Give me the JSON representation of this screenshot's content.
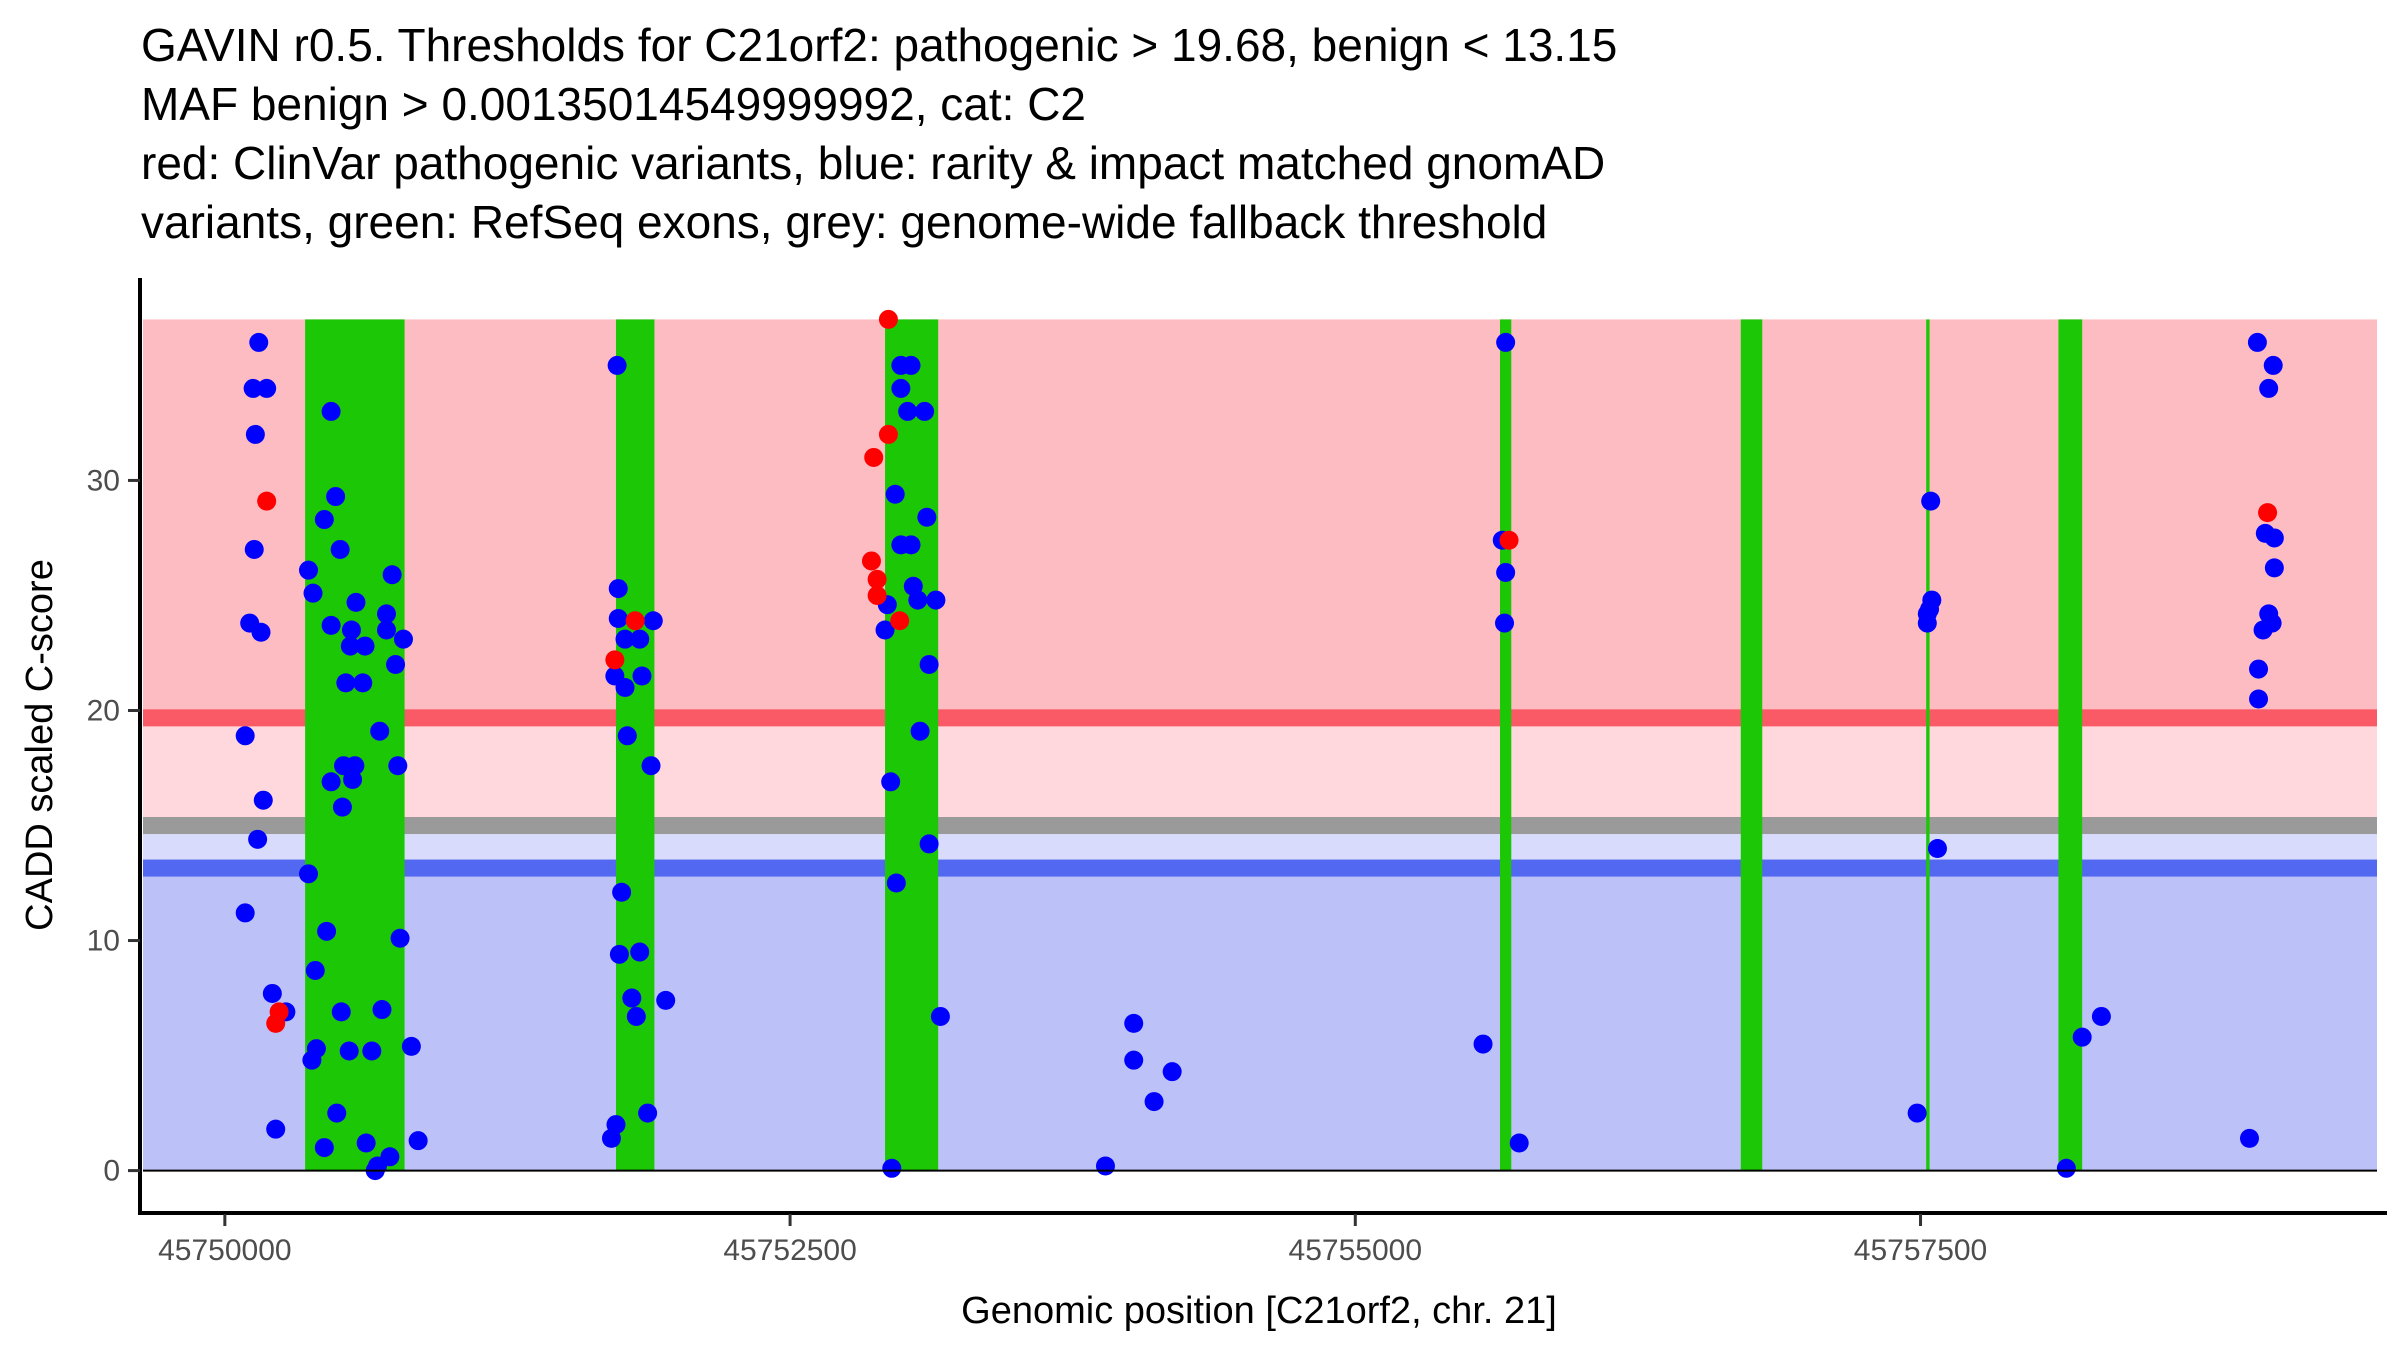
{
  "title": {
    "lines": [
      "GAVIN r0.5. Thresholds for C21orf2: pathogenic > 19.68, benign < 13.15",
      "MAF benign > 0.00135014549999992, cat: C2",
      "red: ClinVar pathogenic variants, blue: rarity & impact matched gnomAD",
      "variants, green: RefSeq exons, grey: genome-wide fallback threshold"
    ]
  },
  "colors": {
    "pathogenic_zone": "#FDBCC2",
    "pathogenic_line": "#FA5966",
    "pathogenic_margin": "#FED8DD",
    "fallback_line": "#9A9A9A",
    "benign_margin": "#D8DBFB",
    "benign_line": "#5368F0",
    "benign_zone": "#BCC2F8",
    "exon": "#1CC805",
    "pathogenic_point": "#FF0000",
    "population_point": "#0000FF",
    "axis": "#000000",
    "tick_text": "#4D4D4D"
  },
  "chart_data": {
    "type": "scatter",
    "title": "GAVIN r0.5. Thresholds for C21orf2: pathogenic > 19.68, benign < 13.15 / MAF benign > 0.00135014549999992, cat: C2",
    "xlabel": "Genomic position [C21orf2, chr. 21]",
    "ylabel": "CADD scaled C-score",
    "xlim": [
      45749638,
      45759519
    ],
    "ylim": [
      -1.8,
      38.8
    ],
    "xticks": [
      45750000,
      45752500,
      45755000,
      45757500
    ],
    "xtick_labels": [
      "45750000",
      "45752500",
      "45755000",
      "45757500"
    ],
    "yticks": [
      0,
      10,
      20,
      30
    ],
    "ytick_labels": [
      "0",
      "10",
      "20",
      "30"
    ],
    "grid": false,
    "legend": "none",
    "thresholds": {
      "pathogenic": 19.68,
      "benign": 13.15,
      "fallback": 15.0,
      "zone_top": 37.0,
      "zone_bottom": 0
    },
    "exons": [
      {
        "start": 45750355,
        "end": 45750795
      },
      {
        "start": 45751730,
        "end": 45751900
      },
      {
        "start": 45752920,
        "end": 45753155
      },
      {
        "start": 45755640,
        "end": 45755690
      },
      {
        "start": 45756705,
        "end": 45756800
      },
      {
        "start": 45757525,
        "end": 45757540
      },
      {
        "start": 45758110,
        "end": 45758215
      }
    ],
    "series": [
      {
        "name": "ClinVar pathogenic variants",
        "color": "red",
        "points": [
          [
            45750185,
            29.1
          ],
          [
            45750240,
            6.9
          ],
          [
            45750225,
            6.4
          ],
          [
            45751815,
            23.9
          ],
          [
            45751725,
            22.2
          ],
          [
            45752935,
            37.0
          ],
          [
            45752935,
            32.0
          ],
          [
            45752870,
            31.0
          ],
          [
            45752860,
            26.5
          ],
          [
            45752885,
            25.7
          ],
          [
            45752885,
            25.0
          ],
          [
            45752985,
            23.9
          ],
          [
            45755680,
            27.4
          ],
          [
            45759035,
            28.6
          ]
        ]
      },
      {
        "name": "rarity & impact matched gnomAD variants",
        "color": "blue",
        "points": [
          [
            45750150,
            36.0
          ],
          [
            45750125,
            34.0
          ],
          [
            45750185,
            34.0
          ],
          [
            45750135,
            32.0
          ],
          [
            45750130,
            27.0
          ],
          [
            45750110,
            23.8
          ],
          [
            45750160,
            23.4
          ],
          [
            45750090,
            18.9
          ],
          [
            45750170,
            16.1
          ],
          [
            45750145,
            14.4
          ],
          [
            45750090,
            11.2
          ],
          [
            45750210,
            7.7
          ],
          [
            45750270,
            6.9
          ],
          [
            45750225,
            1.8
          ],
          [
            45750470,
            33.0
          ],
          [
            45750490,
            29.3
          ],
          [
            45750440,
            28.3
          ],
          [
            45750510,
            27.0
          ],
          [
            45750370,
            26.1
          ],
          [
            45750740,
            25.9
          ],
          [
            45750390,
            25.1
          ],
          [
            45750580,
            24.7
          ],
          [
            45750715,
            24.2
          ],
          [
            45750470,
            23.7
          ],
          [
            45750560,
            23.5
          ],
          [
            45750715,
            23.5
          ],
          [
            45750555,
            22.8
          ],
          [
            45750620,
            22.8
          ],
          [
            45750790,
            23.1
          ],
          [
            45750755,
            22.0
          ],
          [
            45750535,
            21.2
          ],
          [
            45750610,
            21.2
          ],
          [
            45750685,
            19.1
          ],
          [
            45750525,
            17.6
          ],
          [
            45750575,
            17.6
          ],
          [
            45750765,
            17.6
          ],
          [
            45750565,
            17.0
          ],
          [
            45750470,
            16.9
          ],
          [
            45750520,
            15.8
          ],
          [
            45750370,
            12.9
          ],
          [
            45750450,
            10.4
          ],
          [
            45750775,
            10.1
          ],
          [
            45750400,
            8.7
          ],
          [
            45750515,
            6.9
          ],
          [
            45750695,
            7.0
          ],
          [
            45750405,
            5.3
          ],
          [
            45750385,
            4.8
          ],
          [
            45750550,
            5.2
          ],
          [
            45750650,
            5.2
          ],
          [
            45750825,
            5.4
          ],
          [
            45750495,
            2.5
          ],
          [
            45750440,
            1.0
          ],
          [
            45750625,
            1.2
          ],
          [
            45750730,
            0.6
          ],
          [
            45750675,
            0.2
          ],
          [
            45750665,
            0.0
          ],
          [
            45750855,
            1.3
          ],
          [
            45751735,
            35.0
          ],
          [
            45751740,
            25.3
          ],
          [
            45751740,
            24.0
          ],
          [
            45751895,
            23.9
          ],
          [
            45751770,
            23.1
          ],
          [
            45751835,
            23.1
          ],
          [
            45751725,
            21.5
          ],
          [
            45751845,
            21.5
          ],
          [
            45751770,
            21.0
          ],
          [
            45751780,
            18.9
          ],
          [
            45751885,
            17.6
          ],
          [
            45751755,
            12.1
          ],
          [
            45751745,
            9.4
          ],
          [
            45751835,
            9.5
          ],
          [
            45751800,
            7.5
          ],
          [
            45751950,
            7.4
          ],
          [
            45751820,
            6.7
          ],
          [
            45751870,
            2.5
          ],
          [
            45751730,
            2.0
          ],
          [
            45751710,
            1.4
          ],
          [
            45752990,
            35.0
          ],
          [
            45753035,
            35.0
          ],
          [
            45752990,
            34.0
          ],
          [
            45753020,
            33.0
          ],
          [
            45753095,
            33.0
          ],
          [
            45752965,
            29.4
          ],
          [
            45753105,
            28.4
          ],
          [
            45752990,
            27.2
          ],
          [
            45753035,
            27.2
          ],
          [
            45753045,
            25.4
          ],
          [
            45753065,
            24.8
          ],
          [
            45753145,
            24.8
          ],
          [
            45752930,
            24.6
          ],
          [
            45752920,
            23.5
          ],
          [
            45753115,
            22.0
          ],
          [
            45753075,
            19.1
          ],
          [
            45752945,
            16.9
          ],
          [
            45753115,
            14.2
          ],
          [
            45752970,
            12.5
          ],
          [
            45753165,
            6.7
          ],
          [
            45752950,
            0.1
          ],
          [
            45753895,
            0.2
          ],
          [
            45754020,
            4.8
          ],
          [
            45754020,
            6.4
          ],
          [
            45754110,
            3.0
          ],
          [
            45754190,
            4.3
          ],
          [
            45755565,
            5.5
          ],
          [
            45755665,
            36.0
          ],
          [
            45755650,
            27.4
          ],
          [
            45755665,
            26.0
          ],
          [
            45755660,
            23.8
          ],
          [
            45755725,
            1.2
          ],
          [
            45757545,
            29.1
          ],
          [
            45757550,
            24.8
          ],
          [
            45757540,
            24.4
          ],
          [
            45757530,
            24.2
          ],
          [
            45757530,
            23.8
          ],
          [
            45757575,
            14.0
          ],
          [
            45757485,
            2.5
          ],
          [
            45758145,
            0.1
          ],
          [
            45758215,
            5.8
          ],
          [
            45758300,
            6.7
          ],
          [
            45758990,
            36.0
          ],
          [
            45759060,
            35.0
          ],
          [
            45759040,
            34.0
          ],
          [
            45759025,
            27.7
          ],
          [
            45759065,
            27.5
          ],
          [
            45759065,
            26.2
          ],
          [
            45759040,
            24.2
          ],
          [
            45759055,
            23.8
          ],
          [
            45759015,
            23.5
          ],
          [
            45758995,
            21.8
          ],
          [
            45758995,
            20.5
          ],
          [
            45758955,
            1.4
          ]
        ]
      }
    ]
  }
}
